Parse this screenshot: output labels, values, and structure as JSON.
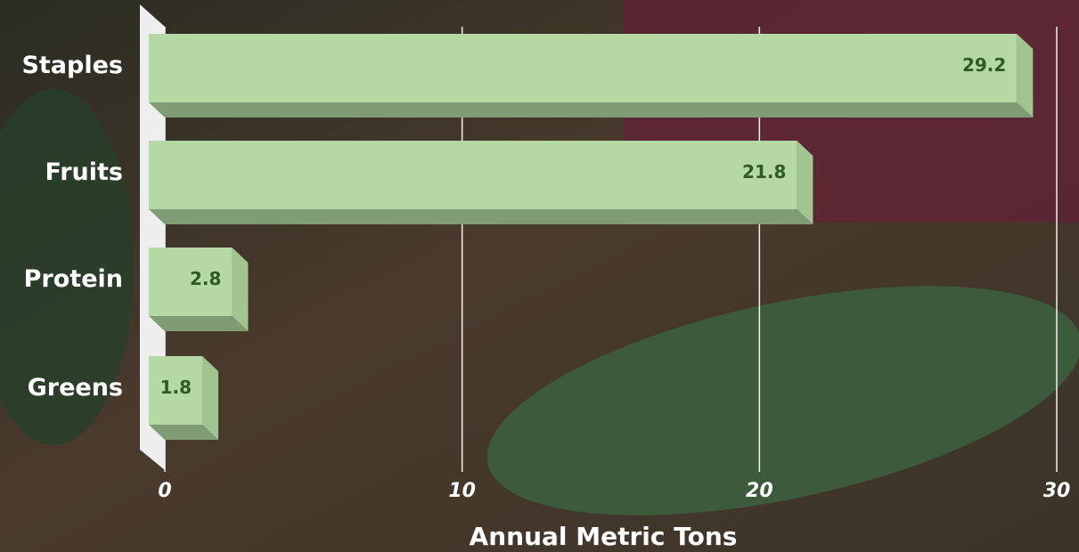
{
  "chart_data": {
    "type": "bar",
    "orientation": "horizontal",
    "categories": [
      "Staples",
      "Fruits",
      "Protein",
      "Greens"
    ],
    "values": [
      29.2,
      21.8,
      2.8,
      1.8
    ],
    "color": "#b5d9a5",
    "xlabel": "Annual Metric Tons",
    "xlim": [
      0,
      30
    ],
    "xticks": [
      0,
      10,
      20,
      30
    ],
    "grid": true
  }
}
